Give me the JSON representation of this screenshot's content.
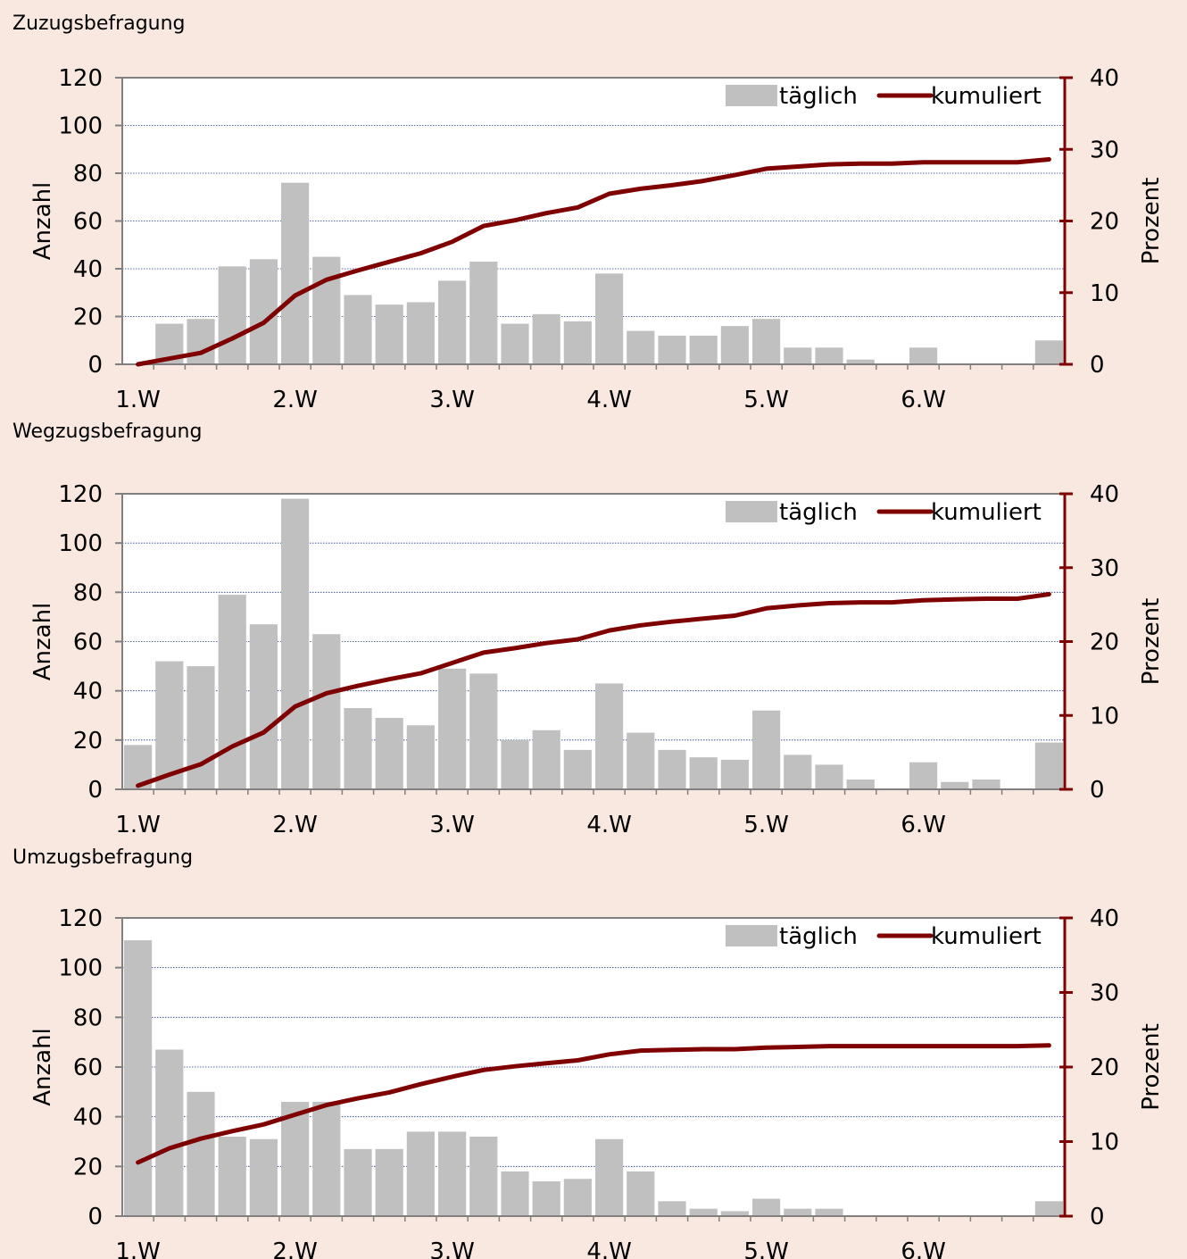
{
  "colors": {
    "background": "#f9e8e0",
    "plot_area": "#ffffff",
    "bar": "#c0c0c0",
    "line": "#7f0000",
    "grid": "#1f3d8a",
    "axis": "#808080"
  },
  "chart_data": [
    {
      "type": "bar+line",
      "title": "Zuzugsbefragung",
      "ylabel": "Anzahl",
      "y2label": "Prozent",
      "ylim": [
        0,
        120
      ],
      "y2lim": [
        0,
        40
      ],
      "yticks": [
        "0",
        "20",
        "40",
        "60",
        "80",
        "100",
        "120"
      ],
      "y2ticks": [
        "0",
        "10",
        "20",
        "30",
        "40"
      ],
      "xticks": [
        "1.W",
        "2.W",
        "3.W",
        "4.W",
        "5.W",
        "6.W"
      ],
      "legend": {
        "position": "top-right",
        "bar_label": "täglich",
        "line_label": "kumuliert"
      },
      "series": [
        {
          "name": "täglich",
          "type": "bar",
          "axis": "left",
          "values": [
            0,
            17,
            19,
            41,
            44,
            76,
            45,
            29,
            25,
            26,
            35,
            43,
            17,
            21,
            18,
            38,
            14,
            12,
            12,
            16,
            19,
            7,
            7,
            2,
            0,
            7,
            0,
            0,
            0,
            10
          ]
        },
        {
          "name": "kumuliert",
          "type": "line",
          "axis": "right",
          "values": [
            0,
            0.8,
            1.6,
            3.6,
            5.8,
            9.6,
            11.8,
            13.1,
            14.3,
            15.5,
            17.1,
            19.3,
            20.1,
            21.1,
            21.9,
            23.8,
            24.5,
            25.0,
            25.6,
            26.4,
            27.3,
            27.6,
            27.9,
            28.0,
            28.0,
            28.2,
            28.2,
            28.2,
            28.2,
            28.6
          ]
        }
      ]
    },
    {
      "type": "bar+line",
      "title": "Wegzugsbefragung",
      "ylabel": "Anzahl",
      "y2label": "Prozent",
      "ylim": [
        0,
        120
      ],
      "y2lim": [
        0,
        40
      ],
      "yticks": [
        "0",
        "20",
        "40",
        "60",
        "80",
        "100",
        "120"
      ],
      "y2ticks": [
        "0",
        "10",
        "20",
        "30",
        "40"
      ],
      "xticks": [
        "1.W",
        "2.W",
        "3.W",
        "4.W",
        "5.W",
        "6.W"
      ],
      "legend": {
        "position": "top-right",
        "bar_label": "täglich",
        "line_label": "kumuliert"
      },
      "series": [
        {
          "name": "täglich",
          "type": "bar",
          "axis": "left",
          "values": [
            18,
            52,
            50,
            79,
            67,
            118,
            63,
            33,
            29,
            26,
            49,
            47,
            20,
            24,
            16,
            43,
            23,
            16,
            13,
            12,
            32,
            14,
            10,
            4,
            0,
            11,
            3,
            4,
            0,
            19
          ]
        },
        {
          "name": "kumuliert",
          "type": "line",
          "axis": "right",
          "values": [
            0.5,
            2.0,
            3.4,
            5.8,
            7.7,
            11.2,
            13.0,
            14.0,
            14.9,
            15.7,
            17.1,
            18.5,
            19.1,
            19.8,
            20.3,
            21.5,
            22.2,
            22.7,
            23.1,
            23.5,
            24.5,
            24.9,
            25.2,
            25.3,
            25.3,
            25.6,
            25.7,
            25.8,
            25.8,
            26.4
          ]
        }
      ]
    },
    {
      "type": "bar+line",
      "title": "Umzugsbefragung",
      "ylabel": "Anzahl",
      "y2label": "Prozent",
      "ylim": [
        0,
        120
      ],
      "y2lim": [
        0,
        40
      ],
      "yticks": [
        "0",
        "20",
        "40",
        "60",
        "80",
        "100",
        "120"
      ],
      "y2ticks": [
        "0",
        "10",
        "20",
        "30",
        "40"
      ],
      "xticks": [
        "1.W",
        "2.W",
        "3.W",
        "4.W",
        "5.W",
        "6.W"
      ],
      "legend": {
        "position": "top-right",
        "bar_label": "täglich",
        "line_label": "kumuliert"
      },
      "series": [
        {
          "name": "täglich",
          "type": "bar",
          "axis": "left",
          "values": [
            111,
            67,
            50,
            32,
            31,
            46,
            46,
            27,
            27,
            34,
            34,
            32,
            18,
            14,
            15,
            31,
            18,
            6,
            3,
            2,
            7,
            3,
            3,
            0,
            0,
            0,
            0,
            0,
            0,
            6
          ]
        },
        {
          "name": "kumuliert",
          "type": "line",
          "axis": "right",
          "values": [
            7.2,
            9.1,
            10.4,
            11.4,
            12.3,
            13.6,
            14.9,
            15.8,
            16.6,
            17.7,
            18.7,
            19.6,
            20.1,
            20.5,
            20.9,
            21.7,
            22.2,
            22.3,
            22.4,
            22.4,
            22.6,
            22.7,
            22.8,
            22.8,
            22.8,
            22.8,
            22.8,
            22.8,
            22.8,
            22.9
          ]
        }
      ]
    }
  ]
}
